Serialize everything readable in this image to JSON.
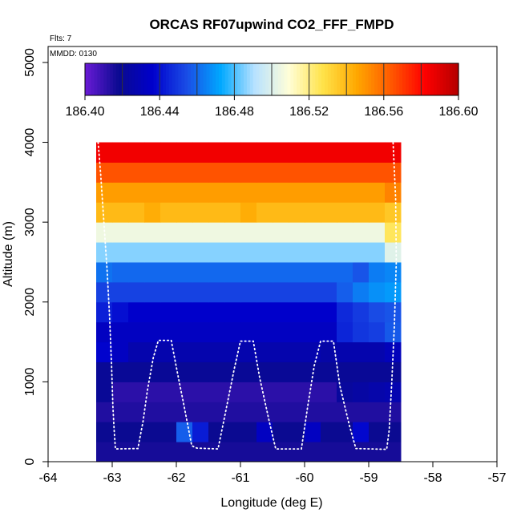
{
  "chart_data": {
    "type": "heatmap",
    "title": "ORCAS RF07upwind CO2_FFF_FMPD",
    "notes": [
      "Flts: 7",
      "MMDD: 0130"
    ],
    "xlabel": "Longitude (deg E)",
    "ylabel": "Altitude (m)",
    "xlim": [
      -64,
      -57
    ],
    "ylim": [
      0,
      5200
    ],
    "x_ticks": [
      -64,
      -63,
      -62,
      -61,
      -60,
      -59,
      -58,
      -57
    ],
    "y_ticks": [
      0,
      1000,
      2000,
      3000,
      4000,
      5000
    ],
    "colorbar": {
      "range": [
        186.4,
        186.6
      ],
      "tick_values": [
        186.4,
        186.44,
        186.48,
        186.52,
        186.56,
        186.6
      ],
      "tick_labels": [
        "186.40",
        "186.44",
        "186.48",
        "186.52",
        "186.56",
        "186.60"
      ],
      "divisions": 10,
      "stops": [
        "#6a1bd6",
        "#0a0a90",
        "#0000cc",
        "#1a4de6",
        "#00a8ff",
        "#b8e2ff",
        "#fffed8",
        "#ffe34a",
        "#ffa800",
        "#ff5a00",
        "#ff0000",
        "#b40000"
      ]
    },
    "grid": {
      "x_range": [
        -63.25,
        -58.5
      ],
      "cols": 19,
      "alt_range": [
        0,
        4000
      ],
      "rows": 16,
      "row_levels": [
        186.416,
        186.418,
        186.414,
        186.412,
        186.42,
        186.427,
        186.433,
        186.436,
        186.452,
        186.46,
        186.486,
        186.505,
        186.54,
        186.548,
        186.565,
        186.585
      ],
      "cell_adjust": {
        "1": [
          [
            5,
            0.04
          ],
          [
            6,
            0.025
          ],
          [
            10,
            0.015
          ],
          [
            13,
            0.015
          ],
          [
            16,
            0.02
          ]
        ],
        "3": [
          [
            0,
            0.008
          ],
          [
            15,
            0.01
          ],
          [
            16,
            0.012
          ],
          [
            17,
            0.014
          ],
          [
            18,
            0.016
          ]
        ],
        "5": [
          [
            0,
            0.01
          ],
          [
            1,
            0.006
          ],
          [
            14,
            -0.002
          ],
          [
            18,
            0.004
          ]
        ],
        "6": [
          [
            15,
            0.012
          ],
          [
            16,
            0.016
          ],
          [
            17,
            0.018
          ],
          [
            18,
            0.024
          ]
        ],
        "7": [
          [
            0,
            0.008
          ],
          [
            1,
            0.004
          ],
          [
            15,
            0.01
          ],
          [
            16,
            0.014
          ],
          [
            17,
            0.018
          ],
          [
            18,
            0.02
          ]
        ],
        "8": [
          [
            15,
            0.006
          ],
          [
            16,
            0.012
          ],
          [
            17,
            0.016
          ],
          [
            18,
            0.018
          ]
        ],
        "9": [
          [
            0,
            0.002
          ],
          [
            16,
            -0.004
          ],
          [
            17,
            0.004
          ],
          [
            18,
            0.006
          ]
        ],
        "10": [
          [
            18,
            0.015
          ]
        ],
        "11": [
          [
            18,
            0.02
          ]
        ],
        "12": [
          [
            3,
            0.004
          ],
          [
            9,
            0.004
          ],
          [
            18,
            -0.004
          ]
        ],
        "13": [
          [
            18,
            0.006
          ]
        ]
      }
    },
    "flight_track": [
      [
        -63.22,
        4000
      ],
      [
        -63.18,
        3600
      ],
      [
        -63.13,
        3000
      ],
      [
        -63.08,
        2400
      ],
      [
        -63.04,
        1800
      ],
      [
        -63.01,
        1200
      ],
      [
        -62.99,
        700
      ],
      [
        -62.97,
        400
      ],
      [
        -62.95,
        160
      ],
      [
        -62.6,
        165
      ],
      [
        -62.52,
        500
      ],
      [
        -62.45,
        900
      ],
      [
        -62.36,
        1300
      ],
      [
        -62.28,
        1520
      ],
      [
        -62.08,
        1520
      ],
      [
        -61.98,
        1100
      ],
      [
        -61.88,
        700
      ],
      [
        -61.76,
        200
      ],
      [
        -61.68,
        170
      ],
      [
        -61.35,
        160
      ],
      [
        -61.25,
        550
      ],
      [
        -61.1,
        1150
      ],
      [
        -61.0,
        1510
      ],
      [
        -60.8,
        1510
      ],
      [
        -60.7,
        1050
      ],
      [
        -60.55,
        500
      ],
      [
        -60.45,
        160
      ],
      [
        -60.05,
        160
      ],
      [
        -59.95,
        700
      ],
      [
        -59.85,
        1200
      ],
      [
        -59.75,
        1510
      ],
      [
        -59.55,
        1510
      ],
      [
        -59.45,
        950
      ],
      [
        -59.3,
        450
      ],
      [
        -59.2,
        165
      ],
      [
        -58.72,
        155
      ],
      [
        -58.68,
        400
      ],
      [
        -58.64,
        1000
      ],
      [
        -58.6,
        1700
      ],
      [
        -58.57,
        2500
      ],
      [
        -58.58,
        3300
      ],
      [
        -58.62,
        4000
      ]
    ]
  }
}
